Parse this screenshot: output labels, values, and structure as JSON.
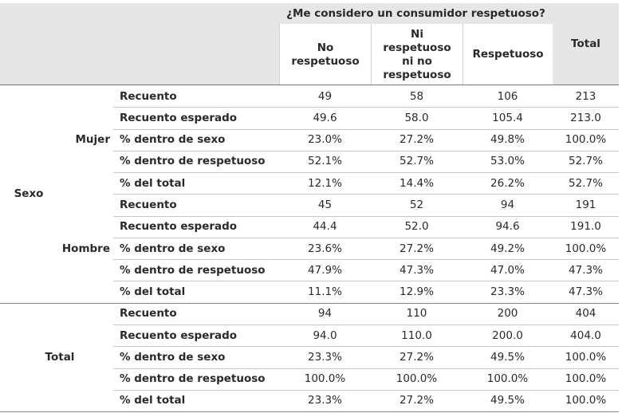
{
  "header": {
    "group_title": "¿Me considero un consumidor respetuoso?",
    "columns": [
      "No respetuoso",
      "Ni respetuoso ni no respetuoso",
      "Respetuoso",
      "Total"
    ]
  },
  "row_variable": "Sexo",
  "groups": [
    {
      "label": "Mujer",
      "rows": [
        {
          "label": "Recuento",
          "cells": [
            "49",
            "58",
            "106",
            "213"
          ]
        },
        {
          "label": "Recuento esperado",
          "cells": [
            "49.6",
            "58.0",
            "105.4",
            "213.0"
          ]
        },
        {
          "label": "% dentro de sexo",
          "cells": [
            "23.0%",
            "27.2%",
            "49.8%",
            "100.0%"
          ]
        },
        {
          "label": "% dentro de respetuoso",
          "cells": [
            "52.1%",
            "52.7%",
            "53.0%",
            "52.7%"
          ]
        },
        {
          "label": "% del total",
          "cells": [
            "12.1%",
            "14.4%",
            "26.2%",
            "52.7%"
          ]
        }
      ]
    },
    {
      "label": "Hombre",
      "rows": [
        {
          "label": "Recuento",
          "cells": [
            "45",
            "52",
            "94",
            "191"
          ]
        },
        {
          "label": "Recuento esperado",
          "cells": [
            "44.4",
            "52.0",
            "94.6",
            "191.0"
          ]
        },
        {
          "label": "% dentro de sexo",
          "cells": [
            "23.6%",
            "27.2%",
            "49.2%",
            "100.0%"
          ]
        },
        {
          "label": "% dentro de respetuoso",
          "cells": [
            "47.9%",
            "47.3%",
            "47.0%",
            "47.3%"
          ]
        },
        {
          "label": "% del total",
          "cells": [
            "11.1%",
            "12.9%",
            "23.3%",
            "47.3%"
          ]
        }
      ]
    },
    {
      "label": "Total",
      "rows": [
        {
          "label": "Recuento",
          "cells": [
            "94",
            "110",
            "200",
            "404"
          ]
        },
        {
          "label": "Recuento esperado",
          "cells": [
            "94.0",
            "110.0",
            "200.0",
            "404.0"
          ]
        },
        {
          "label": "% dentro de sexo",
          "cells": [
            "23.3%",
            "27.2%",
            "49.5%",
            "100.0%"
          ]
        },
        {
          "label": "% dentro de respetuoso",
          "cells": [
            "100.0%",
            "100.0%",
            "100.0%",
            "100.0%"
          ]
        },
        {
          "label": "% del total",
          "cells": [
            "23.3%",
            "27.2%",
            "49.5%",
            "100.0%"
          ]
        }
      ]
    }
  ]
}
